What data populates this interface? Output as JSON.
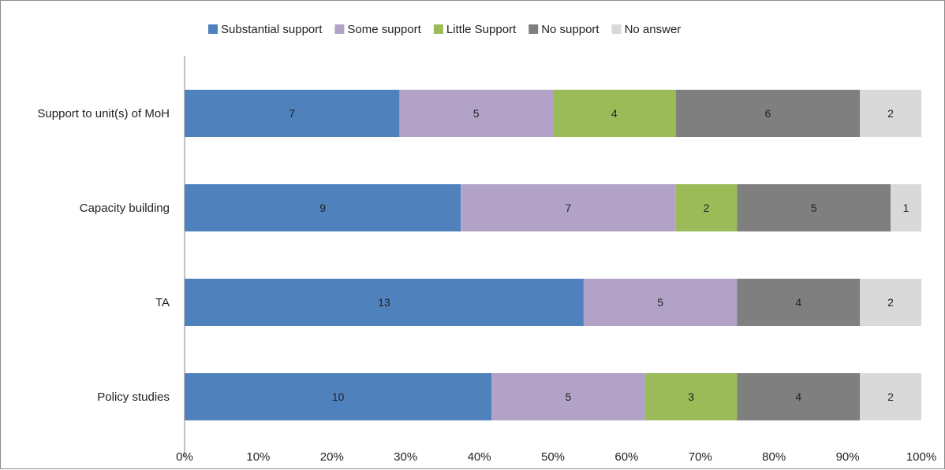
{
  "chart_data": {
    "type": "bar",
    "orientation": "horizontal",
    "stacked": "percent",
    "categories": [
      "Support to unit(s) of MoH",
      "Capacity building",
      "TA",
      "Policy studies"
    ],
    "series": [
      {
        "name": "Substantial support",
        "color": "#4f81bd",
        "values": [
          7,
          9,
          13,
          10
        ]
      },
      {
        "name": "Some support",
        "color": "#b3a2c7",
        "values": [
          5,
          7,
          5,
          5
        ]
      },
      {
        "name": "Little Support",
        "color": "#9bbb59",
        "values": [
          4,
          2,
          0,
          3
        ]
      },
      {
        "name": "No support",
        "color": "#7f7f7f",
        "values": [
          6,
          5,
          4,
          4
        ]
      },
      {
        "name": "No answer",
        "color": "#d9d9d9",
        "values": [
          2,
          1,
          2,
          2
        ]
      }
    ],
    "x_ticks": [
      "0%",
      "10%",
      "20%",
      "30%",
      "40%",
      "50%",
      "60%",
      "70%",
      "80%",
      "90%",
      "100%"
    ],
    "xlim": [
      0,
      100
    ],
    "grid": false,
    "legend": "top"
  }
}
